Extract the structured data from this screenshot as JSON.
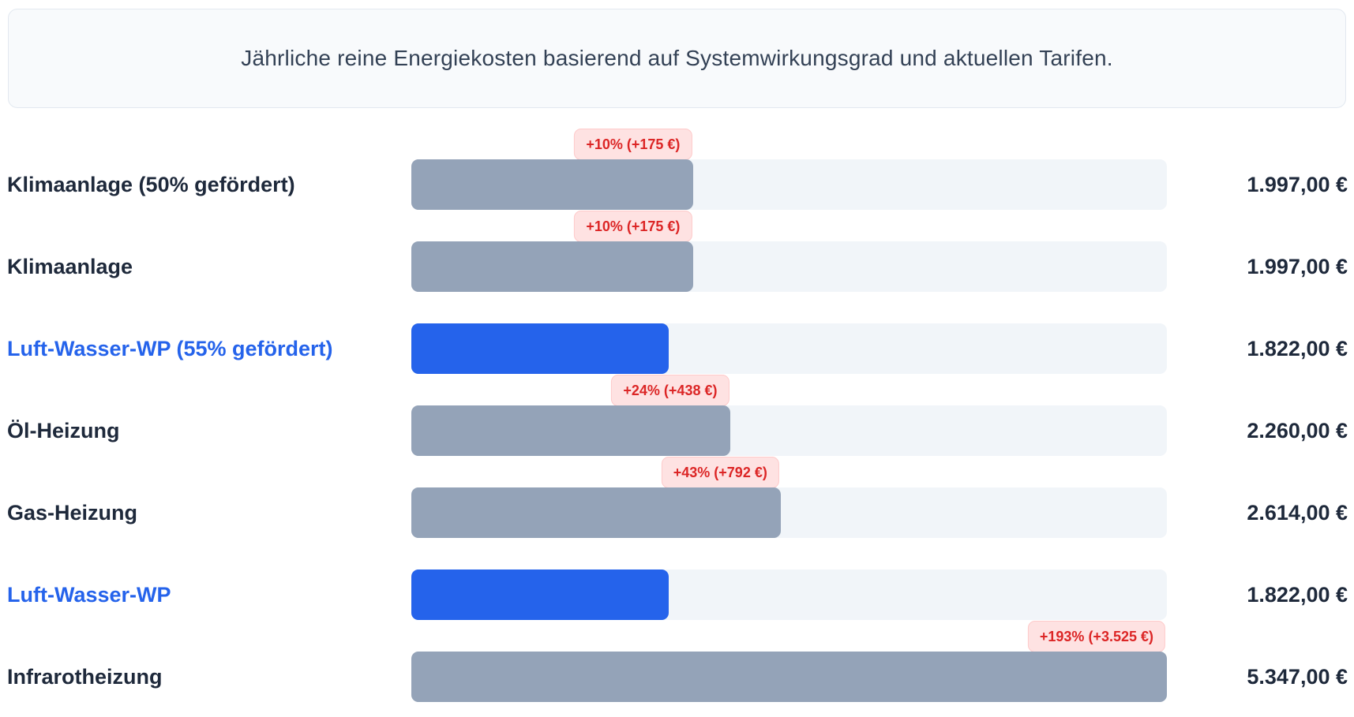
{
  "header": {
    "text": "Jährliche reine Energiekosten basierend auf Systemwirkungsgrad und aktuellen Tarifen."
  },
  "chart_data": {
    "type": "bar",
    "orientation": "horizontal",
    "title": "Jährliche reine Energiekosten basierend auf Systemwirkungsgrad und aktuellen Tarifen.",
    "xlim": [
      0,
      5347
    ],
    "grid": false,
    "legend": false,
    "categories": [
      "Klimaanlage (50% gefördert)",
      "Klimaanlage",
      "Luft-Wasser-WP (55% gefördert)",
      "Öl-Heizung",
      "Gas-Heizung",
      "Luft-Wasser-WP",
      "Infrarotheizung"
    ],
    "values": [
      1997,
      1997,
      1822,
      2260,
      2614,
      1822,
      5347
    ],
    "rows": [
      {
        "label": "Klimaanlage (50% gefördert)",
        "value": 1997,
        "value_label": "1.997,00 €",
        "badge": "+10% (+175 €)",
        "highlight": false
      },
      {
        "label": "Klimaanlage",
        "value": 1997,
        "value_label": "1.997,00 €",
        "badge": "+10% (+175 €)",
        "highlight": false
      },
      {
        "label": "Luft-Wasser-WP (55% gefördert)",
        "value": 1822,
        "value_label": "1.822,00 €",
        "badge": null,
        "highlight": true
      },
      {
        "label": "Öl-Heizung",
        "value": 2260,
        "value_label": "2.260,00 €",
        "badge": "+24% (+438 €)",
        "highlight": false
      },
      {
        "label": "Gas-Heizung",
        "value": 2614,
        "value_label": "2.614,00 €",
        "badge": "+43% (+792 €)",
        "highlight": false
      },
      {
        "label": "Luft-Wasser-WP",
        "value": 1822,
        "value_label": "1.822,00 €",
        "badge": null,
        "highlight": true
      },
      {
        "label": "Infrarotheizung",
        "value": 5347,
        "value_label": "5.347,00 €",
        "badge": "+193% (+3.525 €)",
        "highlight": false
      }
    ],
    "colors": {
      "bar_default": "#94a3b8",
      "bar_highlight": "#2563eb",
      "track": "#f1f5f9",
      "label_default": "#1e293b",
      "label_highlight": "#2563eb",
      "badge_text": "#dc2626",
      "badge_bg": "#fee2e2",
      "badge_border": "#fecaca",
      "banner_bg": "#f8fafc",
      "banner_border": "#e2e8f0",
      "banner_text": "#334155"
    }
  }
}
